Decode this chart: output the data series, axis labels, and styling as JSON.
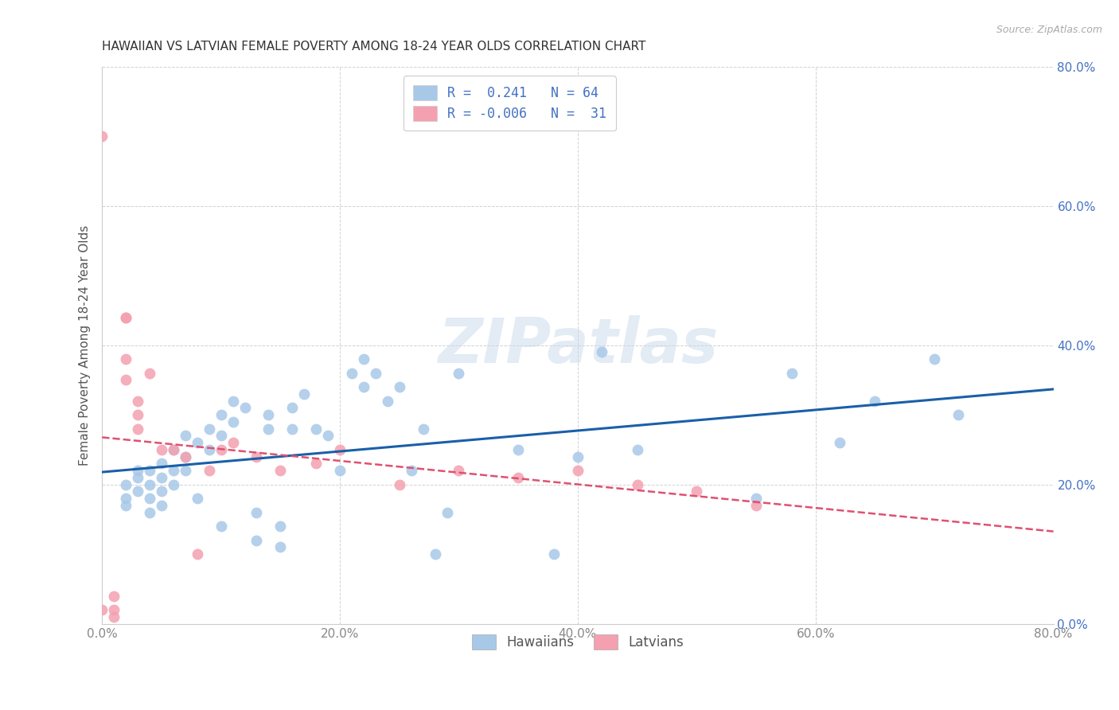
{
  "title": "HAWAIIAN VS LATVIAN FEMALE POVERTY AMONG 18-24 YEAR OLDS CORRELATION CHART",
  "source": "Source: ZipAtlas.com",
  "ylabel": "Female Poverty Among 18-24 Year Olds",
  "xlim": [
    0.0,
    0.8
  ],
  "ylim": [
    0.0,
    0.8
  ],
  "ticks": [
    0.0,
    0.2,
    0.4,
    0.6,
    0.8
  ],
  "ticklabels": [
    "0.0%",
    "20.0%",
    "40.0%",
    "60.0%",
    "80.0%"
  ],
  "hawaiian_color": "#a8c8e8",
  "latvian_color": "#f4a0b0",
  "hawaiian_line_color": "#1a5fa8",
  "latvian_line_color": "#e05070",
  "tick_color_right": "#4472c4",
  "tick_color_bottom": "#888888",
  "r_hawaiian": 0.241,
  "n_hawaiian": 64,
  "r_latvian": -0.006,
  "n_latvian": 31,
  "watermark": "ZIPatlas",
  "hawaiian_x": [
    0.02,
    0.02,
    0.02,
    0.03,
    0.03,
    0.03,
    0.04,
    0.04,
    0.04,
    0.04,
    0.05,
    0.05,
    0.05,
    0.05,
    0.06,
    0.06,
    0.06,
    0.07,
    0.07,
    0.07,
    0.08,
    0.08,
    0.09,
    0.09,
    0.1,
    0.1,
    0.1,
    0.11,
    0.11,
    0.12,
    0.13,
    0.13,
    0.14,
    0.14,
    0.15,
    0.15,
    0.16,
    0.16,
    0.17,
    0.18,
    0.19,
    0.2,
    0.21,
    0.22,
    0.22,
    0.23,
    0.24,
    0.25,
    0.26,
    0.27,
    0.28,
    0.29,
    0.3,
    0.35,
    0.38,
    0.4,
    0.42,
    0.45,
    0.55,
    0.58,
    0.62,
    0.65,
    0.7,
    0.72
  ],
  "hawaiian_y": [
    0.18,
    0.2,
    0.17,
    0.22,
    0.19,
    0.21,
    0.2,
    0.18,
    0.22,
    0.16,
    0.19,
    0.21,
    0.17,
    0.23,
    0.25,
    0.22,
    0.2,
    0.27,
    0.24,
    0.22,
    0.26,
    0.18,
    0.28,
    0.25,
    0.3,
    0.27,
    0.14,
    0.29,
    0.32,
    0.31,
    0.12,
    0.16,
    0.28,
    0.3,
    0.11,
    0.14,
    0.28,
    0.31,
    0.33,
    0.28,
    0.27,
    0.22,
    0.36,
    0.38,
    0.34,
    0.36,
    0.32,
    0.34,
    0.22,
    0.28,
    0.1,
    0.16,
    0.36,
    0.25,
    0.1,
    0.24,
    0.39,
    0.25,
    0.18,
    0.36,
    0.26,
    0.32,
    0.38,
    0.3
  ],
  "latvian_x": [
    0.0,
    0.0,
    0.01,
    0.01,
    0.01,
    0.02,
    0.02,
    0.02,
    0.02,
    0.03,
    0.03,
    0.03,
    0.04,
    0.05,
    0.06,
    0.07,
    0.08,
    0.09,
    0.1,
    0.11,
    0.13,
    0.15,
    0.18,
    0.2,
    0.25,
    0.3,
    0.35,
    0.4,
    0.45,
    0.5,
    0.55
  ],
  "latvian_y": [
    0.7,
    0.02,
    0.01,
    0.04,
    0.02,
    0.44,
    0.44,
    0.38,
    0.35,
    0.32,
    0.3,
    0.28,
    0.36,
    0.25,
    0.25,
    0.24,
    0.1,
    0.22,
    0.25,
    0.26,
    0.24,
    0.22,
    0.23,
    0.25,
    0.2,
    0.22,
    0.21,
    0.22,
    0.2,
    0.19,
    0.17
  ]
}
